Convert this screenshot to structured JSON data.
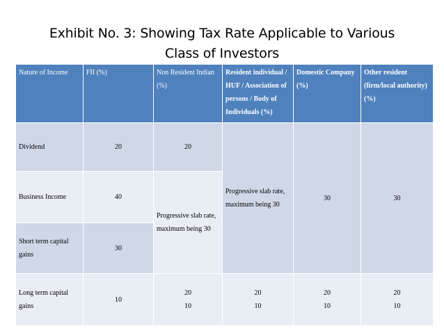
{
  "title": {
    "line1": "Exhibit No. 3: Showing Tax Rate Applicable to Various",
    "line2": "Class of Investors"
  },
  "table": {
    "headers": [
      "Nature of Income",
      "FII (%)",
      "Non Resident Indian (%)",
      "Resident individual / HUF / Association of persons / Body of Individuals (%)",
      "Domestic Company (%)",
      "Other resident (firm/local authority) (%)"
    ],
    "rows": {
      "dividend": {
        "label": "Dividend",
        "fii": "20",
        "nri": "20"
      },
      "business": {
        "label": "Business Income",
        "fii": "40"
      },
      "short_term": {
        "label": "Short term capital gains",
        "fii": "30"
      },
      "long_term": {
        "label": "Long term capital gains",
        "fii": "10",
        "nri": [
          "20",
          "10"
        ],
        "resident": [
          "20",
          "10"
        ],
        "domestic": [
          "20",
          "10"
        ],
        "other": [
          "20",
          "10"
        ]
      }
    },
    "merged": {
      "nri_progressive": "Progressive slab rate, maximum being 30",
      "resident_progressive": "Progressive slab rate, maximum being 30",
      "domestic": "30",
      "other": "30"
    }
  }
}
